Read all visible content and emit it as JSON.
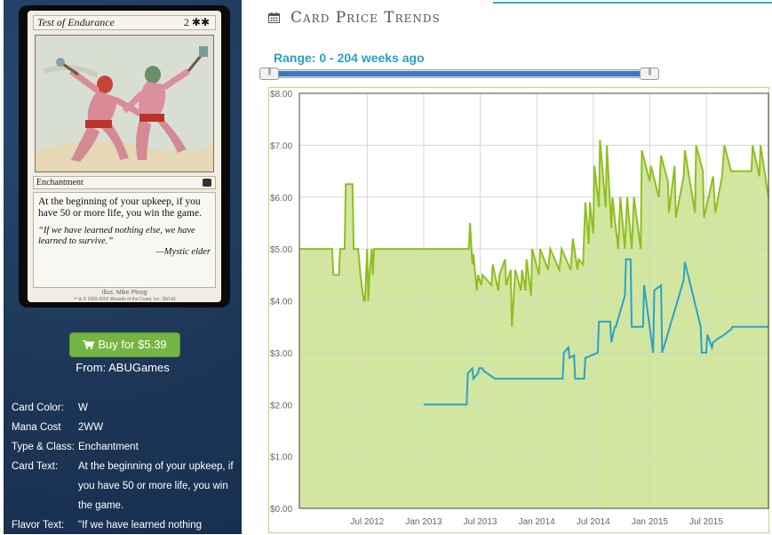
{
  "card": {
    "name": "Test of Endurance",
    "cost": "2",
    "cost_symbols": "✱✱",
    "type_line": "Enchantment",
    "rules_text": "At the beginning of your upkeep, if you have 50 or more life, you win the game.",
    "flavor_text": "“If we have learned nothing else, we have learned to survive.”",
    "flavor_attribution": "—Mystic elder",
    "illustrator": "Illus. Mike Ploog",
    "copyright": "™ & © 1993-2002 Wizards of the Coast, Inc. 39/143"
  },
  "buy": {
    "label": "Buy for $5.39",
    "from": "From: ABUGames"
  },
  "info": [
    {
      "label": "Card Color:",
      "value": "W"
    },
    {
      "label": "Mana Cost",
      "value": "2WW"
    },
    {
      "label": "Type & Class:",
      "value": "Enchantment"
    },
    {
      "label": "Card Text:",
      "value": "At the beginning of your upkeep, if you have 50 or more life, you win the game."
    },
    {
      "label": "Flavor Text:",
      "value": "\"If we have learned nothing"
    }
  ],
  "header": {
    "title": "Card Price Trends"
  },
  "range": {
    "label": "Range: 0 - 204 weeks ago"
  },
  "colors": {
    "accent": "#2db0c2",
    "series_fill": "#d2e6a0",
    "series_green": "#8fbf1f",
    "series_blue": "#2aa3c8",
    "button": "#74b543",
    "panel": "#1f3a5c"
  },
  "chart_data": {
    "type": "line",
    "title": "",
    "xlabel": "",
    "ylabel": "",
    "ylim": [
      0,
      8
    ],
    "y_ticks": [
      "$0.00",
      "$1.00",
      "$2.00",
      "$3.00",
      "$4.00",
      "$5.00",
      "$6.00",
      "$7.00",
      "$8.00"
    ],
    "x_ticks": [
      "Jul 2012",
      "Jan 2013",
      "Jul 2013",
      "Jan 2014",
      "Jul 2014",
      "Jan 2015",
      "Jul 2015"
    ],
    "x_tick_positions": [
      2012.5,
      2013.0,
      2013.5,
      2014.0,
      2014.5,
      2015.0,
      2015.5
    ],
    "xlim": [
      2011.9,
      2016.05
    ],
    "grid": true,
    "series": [
      {
        "color": "green",
        "filled": true,
        "x": [
          2011.9,
          2012.19,
          2012.2,
          2012.25,
          2012.26,
          2012.3,
          2012.31,
          2012.37,
          2012.38,
          2012.42,
          2012.44,
          2012.47,
          2012.48,
          2012.5,
          2012.51,
          2012.52,
          2012.54,
          2012.55,
          2012.56,
          2012.6,
          2012.61,
          2013.4,
          2013.41,
          2013.43,
          2013.44,
          2013.47,
          2013.48,
          2013.51,
          2013.52,
          2013.6,
          2013.61,
          2013.66,
          2013.67,
          2013.72,
          2013.73,
          2013.77,
          2013.78,
          2013.8,
          2013.81,
          2013.86,
          2013.87,
          2013.9,
          2013.91,
          2013.95,
          2013.96,
          2014.02,
          2014.03,
          2014.1,
          2014.12,
          2014.2,
          2014.22,
          2014.3,
          2014.32,
          2014.36,
          2014.37,
          2014.41,
          2014.43,
          2014.46,
          2014.47,
          2014.5,
          2014.51,
          2014.55,
          2014.56,
          2014.61,
          2014.62,
          2014.66,
          2014.67,
          2014.72,
          2014.74,
          2014.78,
          2014.8,
          2014.84,
          2014.86,
          2014.92,
          2014.93,
          2015.0,
          2015.01,
          2015.08,
          2015.1,
          2015.16,
          2015.17,
          2015.22,
          2015.23,
          2015.3,
          2015.31,
          2015.4,
          2015.41,
          2015.47,
          2015.48,
          2015.56,
          2015.58,
          2015.64,
          2015.66,
          2015.72,
          2015.73,
          2015.9,
          2015.91,
          2015.97,
          2015.98,
          2016.05
        ],
        "y": [
          5.0,
          5.0,
          4.5,
          4.5,
          5.0,
          5.0,
          6.25,
          6.25,
          5.0,
          5.0,
          4.5,
          4.0,
          4.0,
          5.0,
          4.0,
          4.5,
          5.0,
          4.5,
          5.0,
          5.0,
          5.0,
          5.0,
          5.5,
          4.7,
          4.9,
          4.2,
          4.5,
          4.3,
          4.5,
          4.3,
          4.7,
          4.2,
          4.5,
          4.8,
          4.3,
          4.6,
          3.5,
          4.2,
          4.6,
          4.2,
          4.6,
          4.2,
          4.8,
          4.1,
          5.0,
          4.5,
          5.0,
          4.6,
          5.0,
          4.6,
          5.0,
          4.6,
          5.2,
          4.6,
          4.8,
          4.7,
          5.9,
          5.1,
          5.9,
          5.3,
          6.6,
          5.8,
          7.1,
          5.8,
          7.0,
          5.4,
          6.0,
          5.0,
          6.0,
          5.0,
          6.0,
          5.0,
          6.0,
          5.0,
          6.9,
          6.3,
          6.6,
          6.0,
          6.8,
          6.3,
          5.7,
          6.6,
          5.6,
          6.4,
          6.9,
          5.7,
          7.0,
          6.5,
          5.6,
          6.4,
          5.7,
          6.4,
          7.0,
          6.5,
          6.5,
          6.5,
          7.0,
          6.4,
          7.0,
          6.0
        ]
      },
      {
        "color": "blue",
        "filled": false,
        "x": [
          2013.0,
          2013.38,
          2013.39,
          2013.43,
          2013.44,
          2013.48,
          2013.49,
          2013.52,
          2013.53,
          2013.63,
          2013.64,
          2014.23,
          2014.24,
          2014.28,
          2014.29,
          2014.33,
          2014.34,
          2014.42,
          2014.43,
          2014.54,
          2014.55,
          2014.65,
          2014.66,
          2014.69,
          2014.7,
          2014.78,
          2014.79,
          2014.83,
          2014.84,
          2014.94,
          2014.95,
          2015.03,
          2015.04,
          2015.1,
          2015.11,
          2015.3,
          2015.31,
          2015.45,
          2015.46,
          2015.5,
          2015.51,
          2015.55,
          2015.56,
          2015.62,
          2015.63,
          2015.72,
          2015.73,
          2016.05
        ],
        "y": [
          2.0,
          2.0,
          2.6,
          2.7,
          2.5,
          2.6,
          2.7,
          2.7,
          2.65,
          2.5,
          2.5,
          2.5,
          3.0,
          3.1,
          2.9,
          2.95,
          2.5,
          2.5,
          2.9,
          3.0,
          3.6,
          3.6,
          3.2,
          3.5,
          3.5,
          4.1,
          4.8,
          4.8,
          3.5,
          3.5,
          4.3,
          3.0,
          4.2,
          4.3,
          3.0,
          4.4,
          4.75,
          3.5,
          3.0,
          3.0,
          3.35,
          3.1,
          3.2,
          3.3,
          3.3,
          3.45,
          3.5,
          3.5
        ]
      }
    ]
  }
}
